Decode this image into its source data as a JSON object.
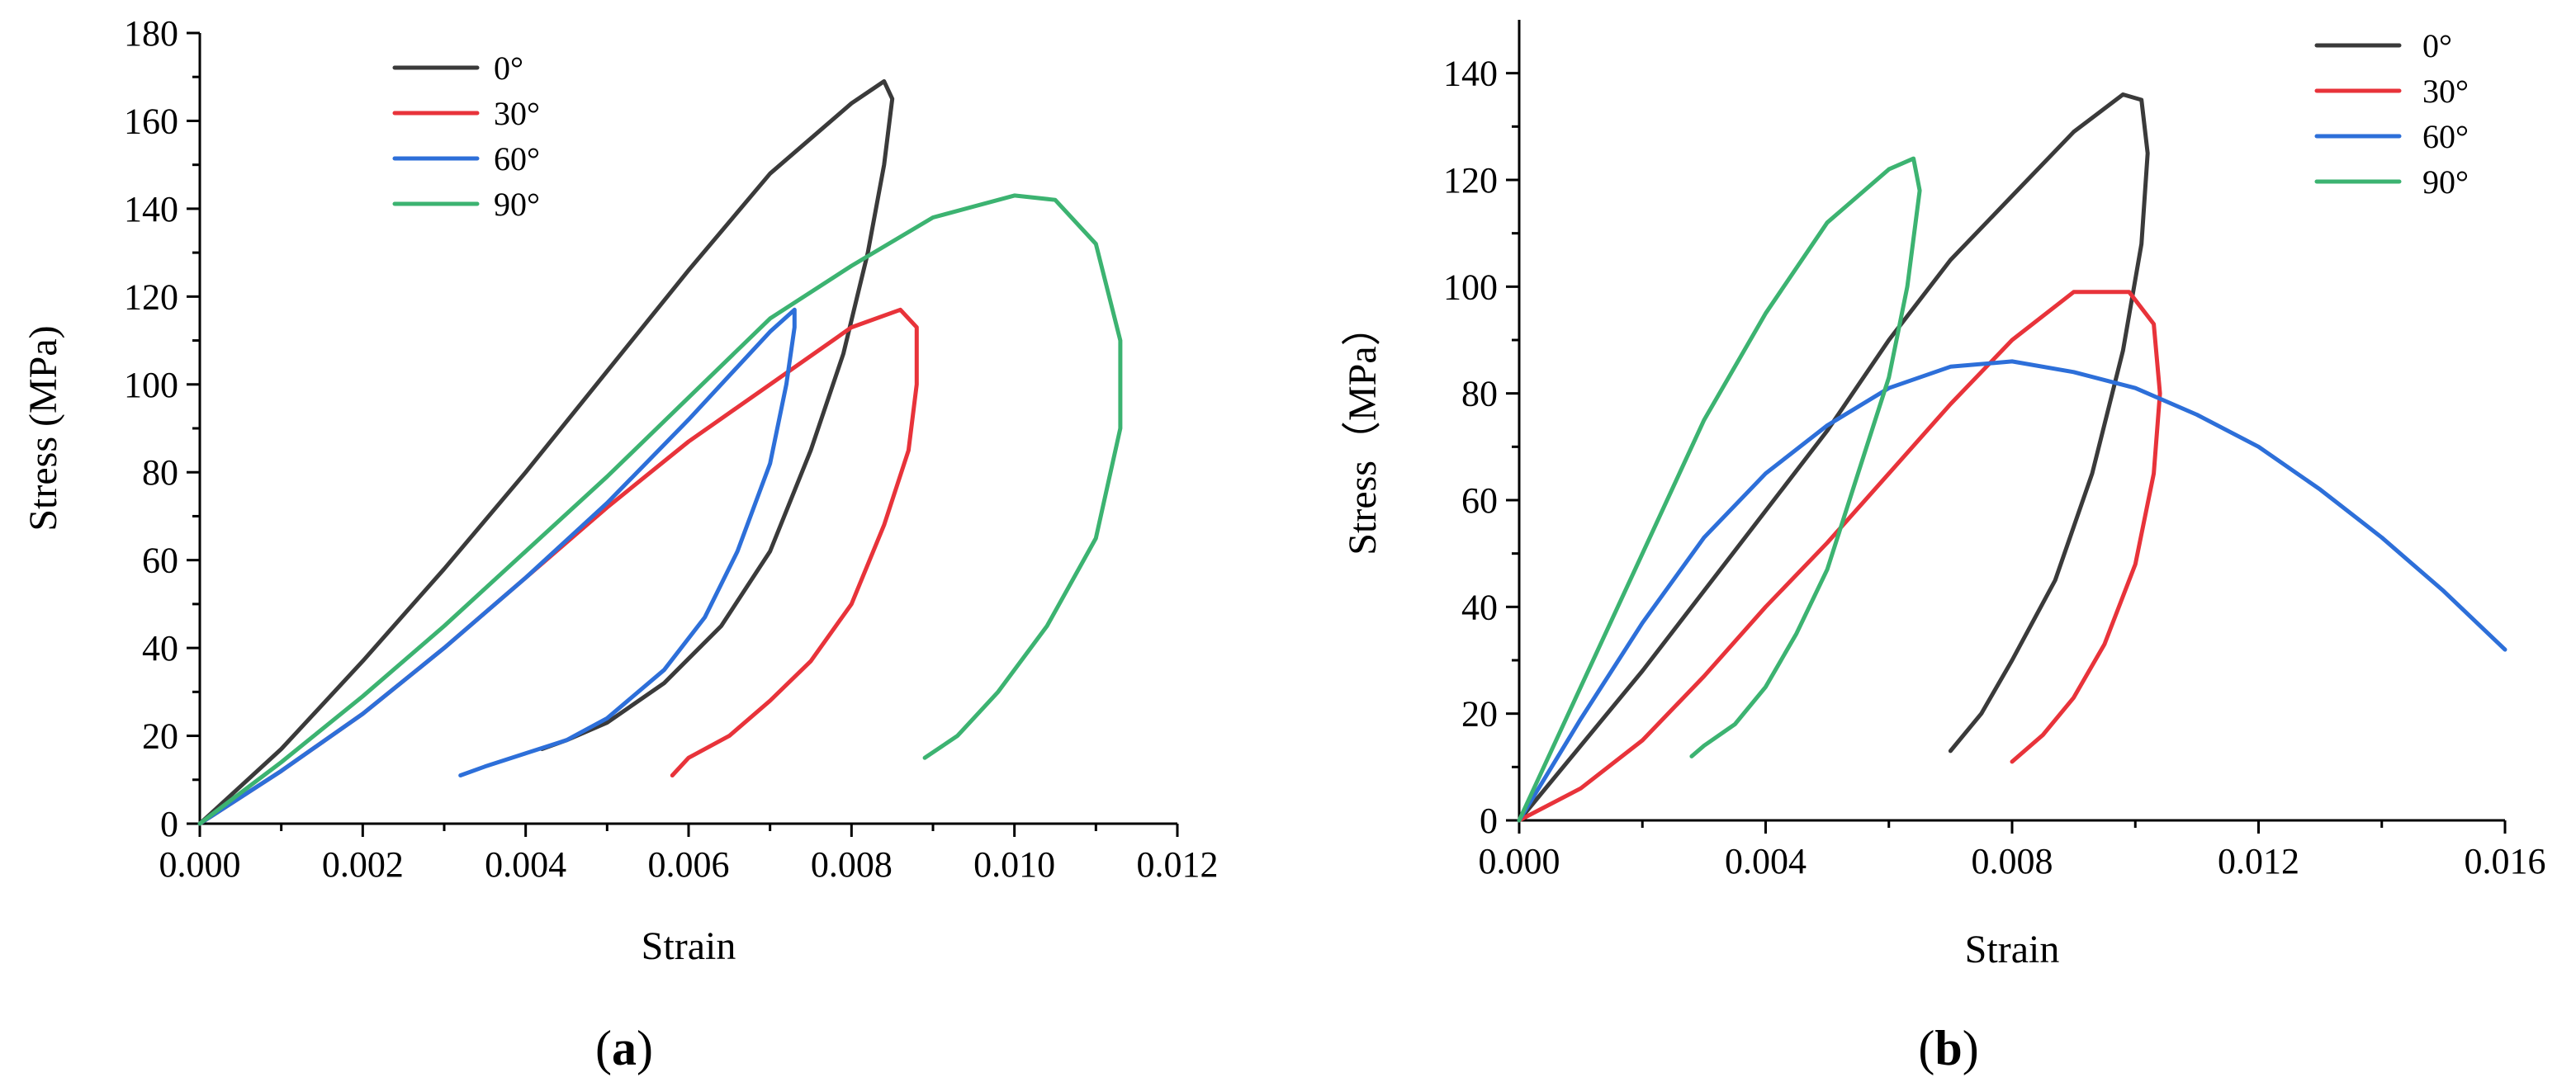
{
  "colors": {
    "black": "#3a3a3a",
    "red": "#e8333a",
    "blue": "#2d6fd9",
    "green": "#3cb371"
  },
  "panels": [
    {
      "label_open": "(",
      "label_letter": "a",
      "label_close": ")"
    },
    {
      "label_open": "(",
      "label_letter": "b",
      "label_close": ")"
    }
  ],
  "chart_data": [
    {
      "type": "line",
      "title": "",
      "xlabel": "Strain",
      "ylabel": "Stress (MPa)",
      "xlim": [
        0,
        0.012
      ],
      "ylim": [
        0,
        180
      ],
      "xticks": [
        0,
        0.002,
        0.004,
        0.006,
        0.008,
        0.01,
        0.012
      ],
      "xtick_labels": [
        "0.000",
        "0.002",
        "0.004",
        "0.006",
        "0.008",
        "0.010",
        "0.012"
      ],
      "yticks": [
        0,
        20,
        40,
        60,
        80,
        100,
        120,
        140,
        160,
        180
      ],
      "ytick_labels": [
        "0",
        "20",
        "40",
        "60",
        "80",
        "100",
        "120",
        "140",
        "160",
        "180"
      ],
      "legend_position": "top-left",
      "series": [
        {
          "name": "0°",
          "color": "#3a3a3a",
          "points": [
            [
              0,
              0
            ],
            [
              0.001,
              17
            ],
            [
              0.002,
              37
            ],
            [
              0.003,
              58
            ],
            [
              0.004,
              80
            ],
            [
              0.005,
              103
            ],
            [
              0.006,
              126
            ],
            [
              0.007,
              148
            ],
            [
              0.008,
              164
            ],
            [
              0.0084,
              169
            ],
            [
              0.0085,
              165
            ],
            [
              0.0084,
              150
            ],
            [
              0.0082,
              130
            ],
            [
              0.0079,
              107
            ],
            [
              0.0075,
              85
            ],
            [
              0.007,
              62
            ],
            [
              0.0064,
              45
            ],
            [
              0.0057,
              32
            ],
            [
              0.005,
              23
            ],
            [
              0.0045,
              19
            ],
            [
              0.0042,
              17
            ]
          ]
        },
        {
          "name": "30°",
          "color": "#e8333a",
          "points": [
            [
              0,
              0
            ],
            [
              0.001,
              12
            ],
            [
              0.002,
              25
            ],
            [
              0.003,
              40
            ],
            [
              0.004,
              56
            ],
            [
              0.005,
              72
            ],
            [
              0.006,
              87
            ],
            [
              0.007,
              100
            ],
            [
              0.008,
              113
            ],
            [
              0.0086,
              117
            ],
            [
              0.0088,
              113
            ],
            [
              0.0088,
              100
            ],
            [
              0.0087,
              85
            ],
            [
              0.0084,
              68
            ],
            [
              0.008,
              50
            ],
            [
              0.0075,
              37
            ],
            [
              0.007,
              28
            ],
            [
              0.0065,
              20
            ],
            [
              0.006,
              15
            ],
            [
              0.0058,
              11
            ]
          ]
        },
        {
          "name": "60°",
          "color": "#2d6fd9",
          "points": [
            [
              0,
              0
            ],
            [
              0.001,
              12
            ],
            [
              0.002,
              25
            ],
            [
              0.003,
              40
            ],
            [
              0.004,
              56
            ],
            [
              0.005,
              73
            ],
            [
              0.006,
              92
            ],
            [
              0.007,
              112
            ],
            [
              0.0073,
              117
            ],
            [
              0.0073,
              113
            ],
            [
              0.0072,
              100
            ],
            [
              0.007,
              82
            ],
            [
              0.0066,
              62
            ],
            [
              0.0062,
              47
            ],
            [
              0.0057,
              35
            ],
            [
              0.005,
              24
            ],
            [
              0.0045,
              19
            ],
            [
              0.004,
              16
            ],
            [
              0.0035,
              13
            ],
            [
              0.0032,
              11
            ]
          ]
        },
        {
          "name": "90°",
          "color": "#3cb371",
          "points": [
            [
              0,
              0
            ],
            [
              0.001,
              14
            ],
            [
              0.002,
              29
            ],
            [
              0.003,
              45
            ],
            [
              0.004,
              62
            ],
            [
              0.005,
              79
            ],
            [
              0.006,
              97
            ],
            [
              0.007,
              115
            ],
            [
              0.008,
              127
            ],
            [
              0.009,
              138
            ],
            [
              0.01,
              143
            ],
            [
              0.0105,
              142
            ],
            [
              0.011,
              132
            ],
            [
              0.0113,
              110
            ],
            [
              0.0113,
              90
            ],
            [
              0.011,
              65
            ],
            [
              0.0104,
              45
            ],
            [
              0.0098,
              30
            ],
            [
              0.0093,
              20
            ],
            [
              0.0089,
              15
            ]
          ]
        }
      ]
    },
    {
      "type": "line",
      "title": "",
      "xlabel": "Strain",
      "ylabel": "Stress（MPa）",
      "xlim": [
        0,
        0.016
      ],
      "ylim": [
        0,
        150
      ],
      "xticks": [
        0,
        0.004,
        0.008,
        0.012,
        0.016
      ],
      "xtick_labels": [
        "0.000",
        "0.004",
        "0.008",
        "0.012",
        "0.016"
      ],
      "yticks": [
        0,
        20,
        40,
        60,
        80,
        100,
        120,
        140
      ],
      "ytick_labels": [
        "0",
        "20",
        "40",
        "60",
        "80",
        "100",
        "120",
        "140"
      ],
      "legend_position": "top-right",
      "series": [
        {
          "name": "0°",
          "color": "#3a3a3a",
          "points": [
            [
              0,
              0
            ],
            [
              0.001,
              14
            ],
            [
              0.002,
              28
            ],
            [
              0.003,
              43
            ],
            [
              0.004,
              58
            ],
            [
              0.005,
              73
            ],
            [
              0.006,
              90
            ],
            [
              0.007,
              105
            ],
            [
              0.008,
              117
            ],
            [
              0.009,
              129
            ],
            [
              0.0098,
              136
            ],
            [
              0.0101,
              135
            ],
            [
              0.0102,
              125
            ],
            [
              0.0101,
              108
            ],
            [
              0.0098,
              88
            ],
            [
              0.0093,
              65
            ],
            [
              0.0087,
              45
            ],
            [
              0.008,
              30
            ],
            [
              0.0075,
              20
            ],
            [
              0.007,
              13
            ]
          ]
        },
        {
          "name": "30°",
          "color": "#e8333a",
          "points": [
            [
              0,
              0
            ],
            [
              0.001,
              6
            ],
            [
              0.002,
              15
            ],
            [
              0.003,
              27
            ],
            [
              0.004,
              40
            ],
            [
              0.005,
              52
            ],
            [
              0.006,
              65
            ],
            [
              0.007,
              78
            ],
            [
              0.008,
              90
            ],
            [
              0.009,
              99
            ],
            [
              0.0099,
              99
            ],
            [
              0.0103,
              93
            ],
            [
              0.0104,
              80
            ],
            [
              0.0103,
              65
            ],
            [
              0.01,
              48
            ],
            [
              0.0095,
              33
            ],
            [
              0.009,
              23
            ],
            [
              0.0085,
              16
            ],
            [
              0.008,
              11
            ]
          ]
        },
        {
          "name": "60°",
          "color": "#2d6fd9",
          "points": [
            [
              0,
              0
            ],
            [
              0.001,
              19
            ],
            [
              0.002,
              37
            ],
            [
              0.003,
              53
            ],
            [
              0.004,
              65
            ],
            [
              0.005,
              74
            ],
            [
              0.006,
              81
            ],
            [
              0.007,
              85
            ],
            [
              0.008,
              86
            ],
            [
              0.009,
              84
            ],
            [
              0.01,
              81
            ],
            [
              0.011,
              76
            ],
            [
              0.012,
              70
            ],
            [
              0.013,
              62
            ],
            [
              0.014,
              53
            ],
            [
              0.015,
              43
            ],
            [
              0.016,
              32
            ]
          ]
        },
        {
          "name": "90°",
          "color": "#3cb371",
          "points": [
            [
              0,
              0
            ],
            [
              0.001,
              25
            ],
            [
              0.002,
              50
            ],
            [
              0.003,
              75
            ],
            [
              0.004,
              95
            ],
            [
              0.005,
              112
            ],
            [
              0.006,
              122
            ],
            [
              0.0064,
              124
            ],
            [
              0.0065,
              118
            ],
            [
              0.0063,
              100
            ],
            [
              0.006,
              83
            ],
            [
              0.0055,
              65
            ],
            [
              0.005,
              47
            ],
            [
              0.0045,
              35
            ],
            [
              0.004,
              25
            ],
            [
              0.0035,
              18
            ],
            [
              0.003,
              14
            ],
            [
              0.0028,
              12
            ]
          ]
        }
      ]
    }
  ]
}
